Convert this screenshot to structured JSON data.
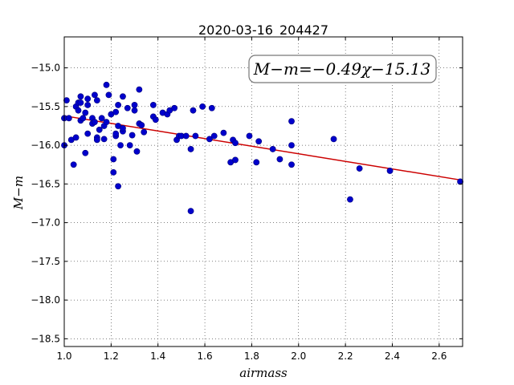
{
  "chart_data": {
    "type": "scatter",
    "title": "2020-03-16_204427",
    "xlabel": "airmass",
    "ylabel": "M−m",
    "xlim": [
      1.0,
      2.7
    ],
    "ylim": [
      -18.6,
      -14.6
    ],
    "xticks": [
      1.0,
      1.2,
      1.4,
      1.6,
      1.8,
      2.0,
      2.2,
      2.4,
      2.6
    ],
    "xtick_labels": [
      "1.0",
      "1.2",
      "1.4",
      "1.6",
      "1.8",
      "2.0",
      "2.2",
      "2.4",
      "2.6"
    ],
    "yticks": [
      -15.0,
      -15.5,
      -16.0,
      -16.5,
      -17.0,
      -17.5,
      -18.0,
      -18.5
    ],
    "ytick_labels": [
      "−15.0",
      "−15.5",
      "−16.0",
      "−16.5",
      "−17.0",
      "−17.5",
      "−18.0",
      "−18.5"
    ],
    "grid": true,
    "annotation": "M−m=−0.49χ−15.13",
    "fit": {
      "slope": -0.49,
      "intercept": -15.13,
      "color": "#cc0000"
    },
    "point_color": "#0000cc",
    "points": [
      {
        "x": 1.0,
        "y": -15.65
      },
      {
        "x": 1.0,
        "y": -16.0
      },
      {
        "x": 1.01,
        "y": -15.42
      },
      {
        "x": 1.02,
        "y": -15.65
      },
      {
        "x": 1.03,
        "y": -15.93
      },
      {
        "x": 1.04,
        "y": -16.25
      },
      {
        "x": 1.05,
        "y": -15.9
      },
      {
        "x": 1.05,
        "y": -15.5
      },
      {
        "x": 1.06,
        "y": -15.45
      },
      {
        "x": 1.06,
        "y": -15.55
      },
      {
        "x": 1.07,
        "y": -15.45
      },
      {
        "x": 1.07,
        "y": -15.37
      },
      {
        "x": 1.07,
        "y": -15.68
      },
      {
        "x": 1.08,
        "y": -15.65
      },
      {
        "x": 1.09,
        "y": -16.1
      },
      {
        "x": 1.09,
        "y": -15.58
      },
      {
        "x": 1.1,
        "y": -15.4
      },
      {
        "x": 1.1,
        "y": -15.48
      },
      {
        "x": 1.1,
        "y": -15.85
      },
      {
        "x": 1.12,
        "y": -15.72
      },
      {
        "x": 1.12,
        "y": -15.65
      },
      {
        "x": 1.13,
        "y": -15.35
      },
      {
        "x": 1.13,
        "y": -15.7
      },
      {
        "x": 1.14,
        "y": -15.42
      },
      {
        "x": 1.14,
        "y": -15.9
      },
      {
        "x": 1.14,
        "y": -15.93
      },
      {
        "x": 1.15,
        "y": -15.8
      },
      {
        "x": 1.16,
        "y": -15.65
      },
      {
        "x": 1.17,
        "y": -15.75
      },
      {
        "x": 1.17,
        "y": -15.92
      },
      {
        "x": 1.18,
        "y": -15.7
      },
      {
        "x": 1.18,
        "y": -15.22
      },
      {
        "x": 1.19,
        "y": -15.35
      },
      {
        "x": 1.2,
        "y": -15.6
      },
      {
        "x": 1.21,
        "y": -16.18
      },
      {
        "x": 1.21,
        "y": -16.35
      },
      {
        "x": 1.22,
        "y": -15.88
      },
      {
        "x": 1.22,
        "y": -15.85
      },
      {
        "x": 1.22,
        "y": -15.57
      },
      {
        "x": 1.23,
        "y": -15.75
      },
      {
        "x": 1.23,
        "y": -15.48
      },
      {
        "x": 1.23,
        "y": -16.53
      },
      {
        "x": 1.24,
        "y": -16.0
      },
      {
        "x": 1.25,
        "y": -15.82
      },
      {
        "x": 1.25,
        "y": -15.78
      },
      {
        "x": 1.25,
        "y": -15.37
      },
      {
        "x": 1.27,
        "y": -15.52
      },
      {
        "x": 1.28,
        "y": -16.0
      },
      {
        "x": 1.29,
        "y": -15.87
      },
      {
        "x": 1.3,
        "y": -15.55
      },
      {
        "x": 1.3,
        "y": -15.48
      },
      {
        "x": 1.31,
        "y": -16.08
      },
      {
        "x": 1.32,
        "y": -15.72
      },
      {
        "x": 1.32,
        "y": -15.28
      },
      {
        "x": 1.33,
        "y": -15.74
      },
      {
        "x": 1.34,
        "y": -15.83
      },
      {
        "x": 1.38,
        "y": -15.63
      },
      {
        "x": 1.38,
        "y": -15.48
      },
      {
        "x": 1.39,
        "y": -15.67
      },
      {
        "x": 1.42,
        "y": -15.58
      },
      {
        "x": 1.44,
        "y": -15.6
      },
      {
        "x": 1.45,
        "y": -15.55
      },
      {
        "x": 1.47,
        "y": -15.52
      },
      {
        "x": 1.48,
        "y": -15.93
      },
      {
        "x": 1.49,
        "y": -15.88
      },
      {
        "x": 1.5,
        "y": -15.88
      },
      {
        "x": 1.52,
        "y": -15.88
      },
      {
        "x": 1.54,
        "y": -16.05
      },
      {
        "x": 1.54,
        "y": -16.85
      },
      {
        "x": 1.55,
        "y": -15.55
      },
      {
        "x": 1.56,
        "y": -15.88
      },
      {
        "x": 1.59,
        "y": -15.5
      },
      {
        "x": 1.62,
        "y": -15.92
      },
      {
        "x": 1.63,
        "y": -15.52
      },
      {
        "x": 1.64,
        "y": -15.88
      },
      {
        "x": 1.68,
        "y": -15.84
      },
      {
        "x": 1.71,
        "y": -16.22
      },
      {
        "x": 1.72,
        "y": -15.93
      },
      {
        "x": 1.73,
        "y": -15.97
      },
      {
        "x": 1.73,
        "y": -16.19
      },
      {
        "x": 1.79,
        "y": -15.88
      },
      {
        "x": 1.82,
        "y": -16.22
      },
      {
        "x": 1.83,
        "y": -15.95
      },
      {
        "x": 1.89,
        "y": -16.05
      },
      {
        "x": 1.92,
        "y": -16.18
      },
      {
        "x": 1.97,
        "y": -16.0
      },
      {
        "x": 1.97,
        "y": -16.25
      },
      {
        "x": 1.97,
        "y": -15.69
      },
      {
        "x": 2.15,
        "y": -15.92
      },
      {
        "x": 2.22,
        "y": -16.7
      },
      {
        "x": 2.26,
        "y": -16.3
      },
      {
        "x": 2.39,
        "y": -16.33
      },
      {
        "x": 2.69,
        "y": -16.47
      }
    ]
  }
}
